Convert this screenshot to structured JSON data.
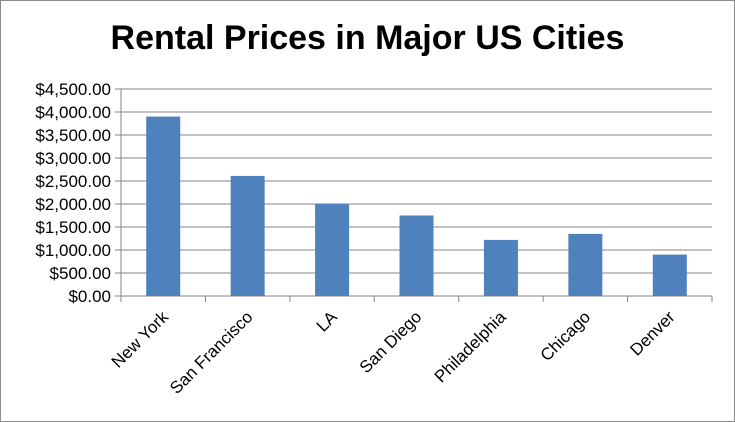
{
  "chart_data": {
    "type": "bar",
    "title": "Rental Prices in Major US Cities",
    "categories": [
      "New York",
      "San Francisco",
      "LA",
      "San Diego",
      "Philadelphia",
      "Chicago",
      "Denver"
    ],
    "values": [
      3900,
      2610,
      2000,
      1750,
      1220,
      1350,
      900
    ],
    "ylim": [
      0,
      4500
    ],
    "ytick_step": 500,
    "ytick_labels": [
      "$0.00",
      "$500.00",
      "$1,000.00",
      "$1,500.00",
      "$2,000.00",
      "$2,500.00",
      "$3,000.00",
      "$3,500.00",
      "$4,000.00",
      "$4,500.00"
    ],
    "grid": true,
    "legend": "none",
    "bar_color": "#4f81bd"
  }
}
